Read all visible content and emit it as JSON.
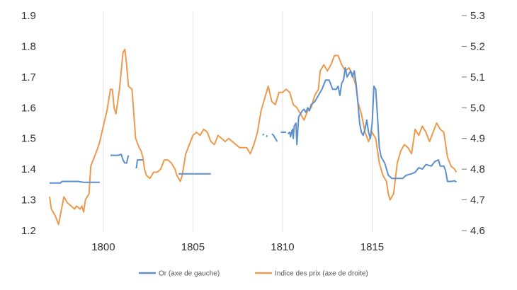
{
  "chart_data": {
    "type": "line",
    "title": "",
    "xlabel": "",
    "ylabel_left": "",
    "ylabel_right": "",
    "x_ticks": [
      1800,
      1805,
      1810,
      1815
    ],
    "xlim": [
      1797,
      1820
    ],
    "ylim_left": [
      1.2,
      1.9
    ],
    "ylim_right": [
      4.6,
      5.3
    ],
    "y_ticks_left": [
      "1.2",
      "1.3",
      "1.4",
      "1.5",
      "1.6",
      "1.7",
      "1.8",
      "1.9"
    ],
    "y_ticks_right": [
      "4.6",
      "4.7",
      "4.8",
      "4.9",
      "5.0",
      "5.1",
      "5.2",
      "5.3"
    ],
    "grid": "vertical",
    "legend_position": "bottom",
    "colors": {
      "or": "#5b8fd0",
      "prix": "#ee9a4d"
    },
    "series": [
      {
        "name": "Or (axe de gauche)",
        "axis": "left",
        "segments": [
          [
            [
              1797.0,
              1.355
            ],
            [
              1797.4,
              1.355
            ],
            [
              1797.6,
              1.355
            ],
            [
              1797.7,
              1.36
            ],
            [
              1798.2,
              1.36
            ],
            [
              1798.6,
              1.36
            ],
            [
              1798.9,
              1.357
            ],
            [
              1799.3,
              1.357
            ],
            [
              1799.8,
              1.357
            ]
          ],
          [
            [
              1800.4,
              1.445
            ],
            [
              1800.8,
              1.445
            ],
            [
              1801.0,
              1.448
            ],
            [
              1801.1,
              1.43
            ],
            [
              1801.2,
              1.42
            ],
            [
              1801.3,
              1.42
            ],
            [
              1801.4,
              1.445
            ]
          ],
          [
            [
              1801.8,
              1.405
            ],
            [
              1801.85,
              1.405
            ],
            [
              1801.9,
              1.43
            ],
            [
              1802.2,
              1.43
            ]
          ],
          [
            [
              1804.2,
              1.385
            ],
            [
              1804.6,
              1.385
            ],
            [
              1805.0,
              1.385
            ],
            [
              1805.5,
              1.385
            ],
            [
              1806.0,
              1.385
            ]
          ],
          [
            [
              1808.9,
              1.51
            ],
            [
              1808.95,
              1.515
            ]
          ],
          [
            [
              1809.1,
              1.505
            ],
            [
              1809.15,
              1.51
            ]
          ],
          [
            [
              1809.4,
              1.515
            ],
            [
              1809.5,
              1.51
            ],
            [
              1809.6,
              1.5
            ],
            [
              1809.7,
              1.49
            ]
          ],
          [
            [
              1809.9,
              1.52
            ],
            [
              1810.2,
              1.52
            ]
          ],
          [
            [
              1810.3,
              1.515
            ],
            [
              1810.4,
              1.52
            ],
            [
              1810.45,
              1.505
            ],
            [
              1810.5,
              1.52
            ],
            [
              1810.55,
              1.53
            ],
            [
              1810.6,
              1.5
            ],
            [
              1810.65,
              1.54
            ],
            [
              1810.75,
              1.55
            ],
            [
              1810.8,
              1.48
            ],
            [
              1810.9,
              1.57
            ],
            [
              1811.0,
              1.58
            ],
            [
              1811.1,
              1.59
            ],
            [
              1811.2,
              1.595
            ],
            [
              1811.3,
              1.585
            ],
            [
              1811.4,
              1.6
            ],
            [
              1811.5,
              1.59
            ],
            [
              1811.6,
              1.61
            ],
            [
              1811.8,
              1.62
            ],
            [
              1812.0,
              1.64
            ],
            [
              1812.2,
              1.66
            ],
            [
              1812.4,
              1.69
            ],
            [
              1812.6,
              1.69
            ],
            [
              1812.8,
              1.66
            ],
            [
              1813.0,
              1.66
            ],
            [
              1813.1,
              1.67
            ],
            [
              1813.2,
              1.64
            ],
            [
              1813.3,
              1.68
            ],
            [
              1813.4,
              1.69
            ],
            [
              1813.5,
              1.73
            ],
            [
              1813.6,
              1.7
            ],
            [
              1813.7,
              1.71
            ],
            [
              1813.8,
              1.72
            ],
            [
              1813.9,
              1.7
            ],
            [
              1814.0,
              1.72
            ],
            [
              1814.1,
              1.68
            ],
            [
              1814.2,
              1.62
            ],
            [
              1814.3,
              1.55
            ],
            [
              1814.4,
              1.52
            ],
            [
              1814.5,
              1.51
            ],
            [
              1814.6,
              1.53
            ],
            [
              1814.7,
              1.56
            ],
            [
              1814.8,
              1.52
            ],
            [
              1814.9,
              1.5
            ],
            [
              1815.0,
              1.55
            ],
            [
              1815.1,
              1.67
            ],
            [
              1815.2,
              1.66
            ],
            [
              1815.3,
              1.57
            ],
            [
              1815.4,
              1.47
            ],
            [
              1815.5,
              1.44
            ],
            [
              1815.7,
              1.42
            ],
            [
              1815.9,
              1.38
            ],
            [
              1816.1,
              1.37
            ],
            [
              1816.4,
              1.37
            ],
            [
              1816.7,
              1.37
            ],
            [
              1816.9,
              1.38
            ],
            [
              1817.2,
              1.385
            ],
            [
              1817.4,
              1.39
            ],
            [
              1817.6,
              1.405
            ],
            [
              1817.8,
              1.4
            ],
            [
              1818.0,
              1.415
            ],
            [
              1818.3,
              1.41
            ],
            [
              1818.5,
              1.425
            ],
            [
              1818.7,
              1.43
            ],
            [
              1818.8,
              1.41
            ],
            [
              1819.0,
              1.41
            ],
            [
              1819.1,
              1.395
            ],
            [
              1819.2,
              1.36
            ],
            [
              1819.4,
              1.36
            ],
            [
              1819.6,
              1.362
            ],
            [
              1819.7,
              1.358
            ]
          ]
        ]
      },
      {
        "name": "Indice des prix (axe de droite)",
        "axis": "right",
        "points": [
          [
            1797.0,
            4.71
          ],
          [
            1797.1,
            4.67
          ],
          [
            1797.3,
            4.65
          ],
          [
            1797.5,
            4.62
          ],
          [
            1797.7,
            4.68
          ],
          [
            1797.8,
            4.71
          ],
          [
            1798.0,
            4.69
          ],
          [
            1798.2,
            4.68
          ],
          [
            1798.4,
            4.67
          ],
          [
            1798.5,
            4.68
          ],
          [
            1798.7,
            4.67
          ],
          [
            1798.8,
            4.68
          ],
          [
            1798.9,
            4.66
          ],
          [
            1799.0,
            4.7
          ],
          [
            1799.1,
            4.71
          ],
          [
            1799.2,
            4.72
          ],
          [
            1799.3,
            4.81
          ],
          [
            1799.5,
            4.84
          ],
          [
            1799.7,
            4.87
          ],
          [
            1799.8,
            4.89
          ],
          [
            1800.0,
            4.94
          ],
          [
            1800.2,
            4.99
          ],
          [
            1800.4,
            5.06
          ],
          [
            1800.5,
            5.06
          ],
          [
            1800.6,
            5.0
          ],
          [
            1800.7,
            4.98
          ],
          [
            1800.8,
            5.02
          ],
          [
            1800.9,
            5.06
          ],
          [
            1801.0,
            5.12
          ],
          [
            1801.1,
            5.18
          ],
          [
            1801.2,
            5.19
          ],
          [
            1801.3,
            5.14
          ],
          [
            1801.4,
            5.07
          ],
          [
            1801.6,
            5.06
          ],
          [
            1801.8,
            4.9
          ],
          [
            1802.0,
            4.87
          ],
          [
            1802.1,
            4.86
          ],
          [
            1802.2,
            4.84
          ],
          [
            1802.3,
            4.8
          ],
          [
            1802.4,
            4.78
          ],
          [
            1802.6,
            4.77
          ],
          [
            1802.8,
            4.79
          ],
          [
            1803.0,
            4.79
          ],
          [
            1803.2,
            4.8
          ],
          [
            1803.4,
            4.83
          ],
          [
            1803.6,
            4.83
          ],
          [
            1803.8,
            4.82
          ],
          [
            1804.0,
            4.8
          ],
          [
            1804.1,
            4.78
          ],
          [
            1804.2,
            4.77
          ],
          [
            1804.3,
            4.76
          ],
          [
            1804.4,
            4.78
          ],
          [
            1804.6,
            4.85
          ],
          [
            1804.8,
            4.88
          ],
          [
            1805.0,
            4.91
          ],
          [
            1805.2,
            4.92
          ],
          [
            1805.4,
            4.91
          ],
          [
            1805.6,
            4.93
          ],
          [
            1805.8,
            4.92
          ],
          [
            1806.0,
            4.89
          ],
          [
            1806.2,
            4.88
          ],
          [
            1806.4,
            4.91
          ],
          [
            1806.6,
            4.9
          ],
          [
            1806.8,
            4.89
          ],
          [
            1807.0,
            4.9
          ],
          [
            1807.2,
            4.89
          ],
          [
            1807.4,
            4.88
          ],
          [
            1807.6,
            4.87
          ],
          [
            1807.8,
            4.87
          ],
          [
            1808.0,
            4.87
          ],
          [
            1808.2,
            4.85
          ],
          [
            1808.4,
            4.88
          ],
          [
            1808.6,
            4.92
          ],
          [
            1808.8,
            4.99
          ],
          [
            1809.0,
            5.03
          ],
          [
            1809.2,
            5.07
          ],
          [
            1809.4,
            5.02
          ],
          [
            1809.6,
            5.01
          ],
          [
            1809.8,
            5.05
          ],
          [
            1810.0,
            5.05
          ],
          [
            1810.2,
            5.06
          ],
          [
            1810.4,
            5.05
          ],
          [
            1810.6,
            5.01
          ],
          [
            1810.8,
            5.0
          ],
          [
            1811.0,
            4.98
          ],
          [
            1811.2,
            4.96
          ],
          [
            1811.4,
            4.99
          ],
          [
            1811.6,
            5.0
          ],
          [
            1811.8,
            5.04
          ],
          [
            1812.0,
            5.06
          ],
          [
            1812.1,
            5.12
          ],
          [
            1812.3,
            5.14
          ],
          [
            1812.5,
            5.12
          ],
          [
            1812.7,
            5.14
          ],
          [
            1812.9,
            5.17
          ],
          [
            1813.1,
            5.17
          ],
          [
            1813.3,
            5.14
          ],
          [
            1813.5,
            5.12
          ],
          [
            1813.7,
            5.13
          ],
          [
            1813.9,
            5.11
          ],
          [
            1814.1,
            5.07
          ],
          [
            1814.2,
            5.02
          ],
          [
            1814.4,
            4.98
          ],
          [
            1814.6,
            4.92
          ],
          [
            1814.8,
            4.89
          ],
          [
            1815.0,
            4.92
          ],
          [
            1815.2,
            4.9
          ],
          [
            1815.4,
            4.82
          ],
          [
            1815.6,
            4.78
          ],
          [
            1815.8,
            4.76
          ],
          [
            1815.9,
            4.72
          ],
          [
            1816.0,
            4.7
          ],
          [
            1816.2,
            4.72
          ],
          [
            1816.4,
            4.82
          ],
          [
            1816.6,
            4.86
          ],
          [
            1816.8,
            4.88
          ],
          [
            1817.0,
            4.87
          ],
          [
            1817.2,
            4.85
          ],
          [
            1817.4,
            4.93
          ],
          [
            1817.6,
            4.91
          ],
          [
            1817.8,
            4.94
          ],
          [
            1818.0,
            4.92
          ],
          [
            1818.2,
            4.89
          ],
          [
            1818.4,
            4.92
          ],
          [
            1818.6,
            4.95
          ],
          [
            1818.8,
            4.93
          ],
          [
            1819.0,
            4.92
          ],
          [
            1819.2,
            4.84
          ],
          [
            1819.4,
            4.81
          ],
          [
            1819.6,
            4.8
          ],
          [
            1819.7,
            4.79
          ]
        ]
      }
    ]
  }
}
